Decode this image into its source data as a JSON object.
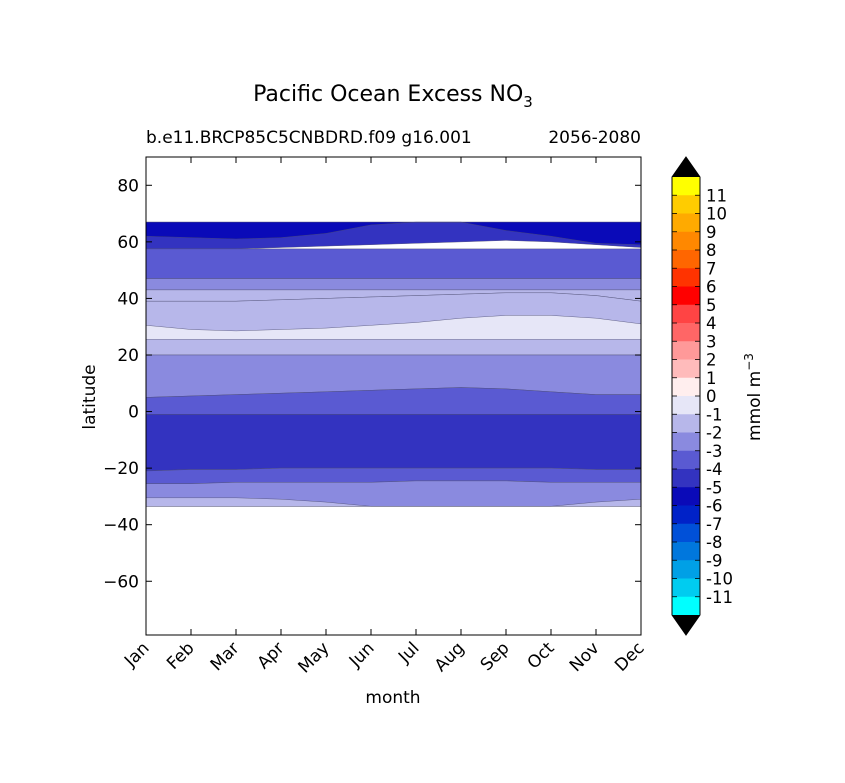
{
  "chart_data": {
    "type": "contour",
    "title": "Pacific Ocean Excess NO",
    "title_subscript": "3",
    "subtitle_left": "b.e11.BRCP85C5CNBDRD.f09 g16.001",
    "subtitle_right": "2056-2080",
    "xlabel": "month",
    "ylabel": "latitude",
    "x_ticks": [
      "Jan",
      "Feb",
      "Mar",
      "Apr",
      "May",
      "Jun",
      "Jul",
      "Aug",
      "Sep",
      "Oct",
      "Nov",
      "Dec"
    ],
    "y_ticks": [
      80,
      60,
      40,
      20,
      0,
      -20,
      -40,
      -60
    ],
    "y_tick_labels": [
      "80",
      "60",
      "40",
      "20",
      "0",
      "−20",
      "−40",
      "−60"
    ],
    "ylim": [
      -79,
      90
    ],
    "data_lat_range": [
      -33.5,
      67
    ],
    "colorbar": {
      "label": "mmol m",
      "label_superscript": "−3",
      "levels": [
        "11",
        "10",
        "9",
        "8",
        "7",
        "6",
        "5",
        "4",
        "3",
        "2",
        "1",
        "0",
        "-1",
        "-2",
        "-3",
        "-4",
        "-5",
        "-6",
        "-7",
        "-8",
        "-9",
        "-10",
        "-11"
      ],
      "colors": [
        "#ffff00",
        "#ffcc00",
        "#ffaa00",
        "#ff8800",
        "#ff6600",
        "#ff3300",
        "#ff0000",
        "#ff4444",
        "#ff6666",
        "#ff9999",
        "#ffbbbb",
        "#ffeeee",
        "#e6e6f7",
        "#b7b7ea",
        "#8a8adf",
        "#5a5ad2",
        "#3333c0",
        "#0a0ab8",
        "#0022c8",
        "#0050d8",
        "#0077dd",
        "#00a0e6",
        "#00ccf0",
        "#00ffff"
      ],
      "extend": "both"
    },
    "band_colors": {
      "-6": "#0a0ab8",
      "-5": "#3333c0",
      "-4": "#5a5ad2",
      "-3": "#8a8adf",
      "-2": "#b7b7ea",
      "-1": "#e6e6f7"
    },
    "bands": [
      {
        "value": -5,
        "top": [
          67,
          67,
          67,
          67,
          67,
          67,
          67,
          67,
          67,
          67,
          67,
          67
        ],
        "bottom": [
          57.5,
          57.5,
          57.5,
          58,
          58.5,
          59,
          59.5,
          60,
          60.5,
          60,
          59,
          58
        ]
      },
      {
        "value": -6,
        "top": [
          67,
          67,
          67,
          67,
          67,
          67,
          67,
          67,
          67,
          67,
          67,
          67
        ],
        "bottom": [
          62,
          61.5,
          61,
          61.5,
          63,
          66,
          67,
          67,
          64,
          62,
          59.5,
          59
        ]
      },
      {
        "value": -4,
        "top": [
          57.5,
          57.5,
          57.5,
          57.5,
          57.5,
          57.5,
          57.5,
          57.5,
          57.5,
          57.5,
          57.5,
          57.5
        ],
        "bottom": [
          47,
          47,
          47,
          47,
          47,
          47,
          47,
          47,
          47,
          47,
          47,
          47
        ]
      },
      {
        "value": -3,
        "top": [
          47,
          47,
          47,
          47,
          47,
          47,
          47,
          47,
          47,
          47,
          47,
          47
        ],
        "bottom": [
          43,
          43,
          43,
          43,
          43,
          43,
          43,
          43,
          43,
          43,
          43,
          43
        ]
      },
      {
        "value": -2,
        "top": [
          43,
          43,
          43,
          43,
          43,
          43,
          43,
          43,
          43,
          43,
          43,
          43
        ],
        "bottom": [
          39,
          39,
          39,
          39.5,
          40,
          40.5,
          41,
          41.5,
          42,
          42,
          41,
          39
        ]
      },
      {
        "value": -2,
        "top": [
          39,
          39,
          39,
          39.5,
          40,
          40.5,
          41,
          41.5,
          42,
          42,
          41,
          39
        ],
        "bottom": [
          25.5,
          25.5,
          25.5,
          25.5,
          25.5,
          25.5,
          25.5,
          25.5,
          25.5,
          25.5,
          25.5,
          25.5
        ]
      },
      {
        "value": -1,
        "top": [
          30.5,
          29,
          28.5,
          29,
          29.5,
          30.5,
          31.5,
          33,
          34,
          34,
          33,
          31
        ]
      },
      {
        "value": -2,
        "top": [
          25.5,
          25.5,
          25.5,
          25.5,
          25.5,
          25.5,
          25.5,
          25.5,
          25.5,
          25.5,
          25.5,
          25.5
        ],
        "bottom": [
          20,
          20,
          20,
          20,
          20,
          20,
          20,
          20,
          20,
          20,
          20,
          20
        ]
      },
      {
        "value": -3,
        "top": [
          20,
          20,
          20,
          20,
          20,
          20,
          20,
          20,
          20,
          20,
          20,
          20
        ],
        "bottom": [
          5,
          5.5,
          6,
          6.5,
          7,
          7.5,
          8,
          8.5,
          8,
          7,
          6,
          6
        ]
      },
      {
        "value": -4,
        "top": [
          5,
          5.5,
          6,
          6.5,
          7,
          7.5,
          8,
          8.5,
          8,
          7,
          6,
          6
        ],
        "bottom": [
          -1,
          -1,
          -1,
          -1,
          -1,
          -1,
          -1,
          -1,
          -1,
          -1,
          -1,
          -1
        ]
      },
      {
        "value": -5,
        "top": [
          -1,
          -1,
          -1,
          -1,
          -1,
          -1,
          -1,
          -1,
          -1,
          -1,
          -1,
          -1
        ],
        "bottom": [
          -21,
          -20.5,
          -20.5,
          -20,
          -20,
          -20,
          -20,
          -20,
          -20,
          -20,
          -20.5,
          -20.5
        ]
      },
      {
        "value": -4,
        "top": [
          -21,
          -20.5,
          -20.5,
          -20,
          -20,
          -20,
          -20,
          -20,
          -20,
          -20,
          -20.5,
          -20.5
        ],
        "bottom": [
          -25.5,
          -25.5,
          -25,
          -25,
          -25,
          -25,
          -24.5,
          -24.5,
          -24.5,
          -25,
          -25,
          -25
        ]
      },
      {
        "value": -3,
        "top": [
          -25.5,
          -25.5,
          -25,
          -25,
          -25,
          -25,
          -24.5,
          -24.5,
          -24.5,
          -25,
          -25,
          -25
        ],
        "bottom": [
          -33.5,
          -33.5,
          -33.5,
          -33.5,
          -33.5,
          -33.5,
          -33.5,
          -33.5,
          -33.5,
          -33.5,
          -33.5,
          -33.5
        ]
      },
      {
        "value": -2,
        "top": [
          -30.5,
          -30.5,
          -30.5,
          -31,
          -32,
          -33.5,
          -33.5,
          -33.5,
          -33.5,
          -33.5,
          -32,
          -31
        ],
        "bottom": [
          -33.5,
          -33.5,
          -33.5,
          -33.5,
          -33.5,
          -33.5,
          -33.5,
          -33.5,
          -33.5,
          -33.5,
          -33.5,
          -33.5
        ]
      }
    ]
  }
}
